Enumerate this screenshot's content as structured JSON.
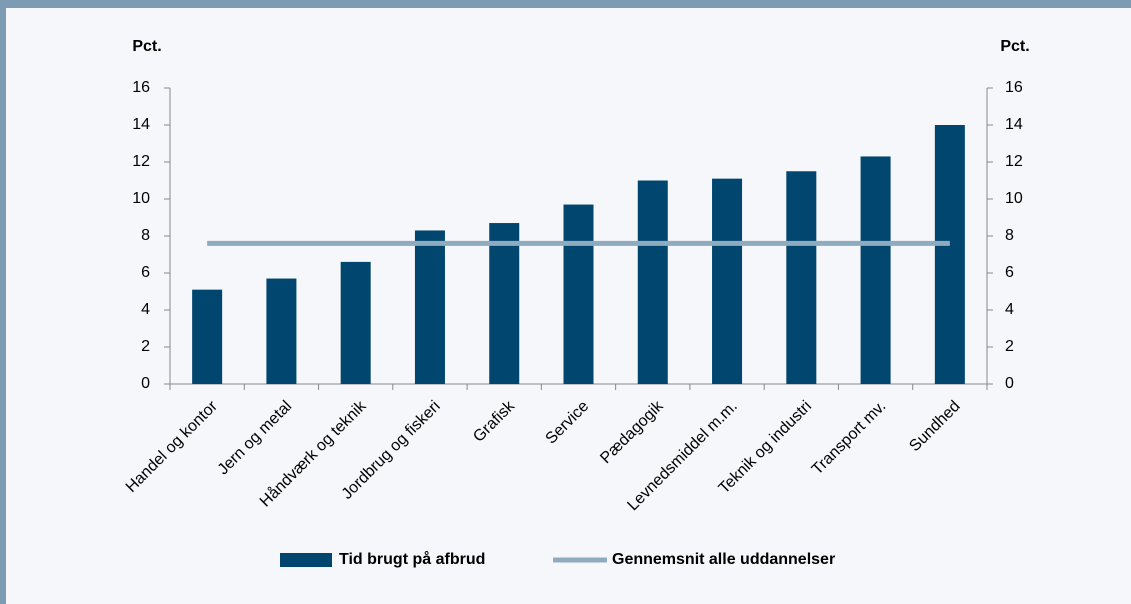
{
  "chart_data": {
    "type": "bar",
    "y_label": "Pct.",
    "y2_label": "Pct.",
    "categories": [
      "Handel og kontor",
      "Jern og metal",
      "Håndværk og teknik",
      "Jordbrug og fiskeri",
      "Grafisk",
      "Service",
      "Pædagogik",
      "Levnedsmiddel m.m.",
      "Teknik og industri",
      "Transport mv.",
      "Sundhed"
    ],
    "series": [
      {
        "name": "Tid brugt på afbrud",
        "type": "bar",
        "color": "#00466e",
        "values": [
          5.1,
          5.7,
          6.6,
          8.3,
          8.7,
          9.7,
          11.0,
          11.1,
          11.5,
          12.3,
          14.0
        ]
      },
      {
        "name": "Gennemsnit alle uddannelser",
        "type": "line",
        "color": "#8fabc0",
        "values": [
          7.6,
          7.6,
          7.6,
          7.6,
          7.6,
          7.6,
          7.6,
          7.6,
          7.6,
          7.6,
          7.6
        ]
      }
    ],
    "ylim": [
      0,
      16
    ],
    "yticks": [
      0,
      2,
      4,
      6,
      8,
      10,
      12,
      14,
      16
    ],
    "y2lim": [
      0,
      16
    ],
    "y2ticks": [
      0,
      2,
      4,
      6,
      8,
      10,
      12,
      14,
      16
    ],
    "legend": "bottom"
  }
}
